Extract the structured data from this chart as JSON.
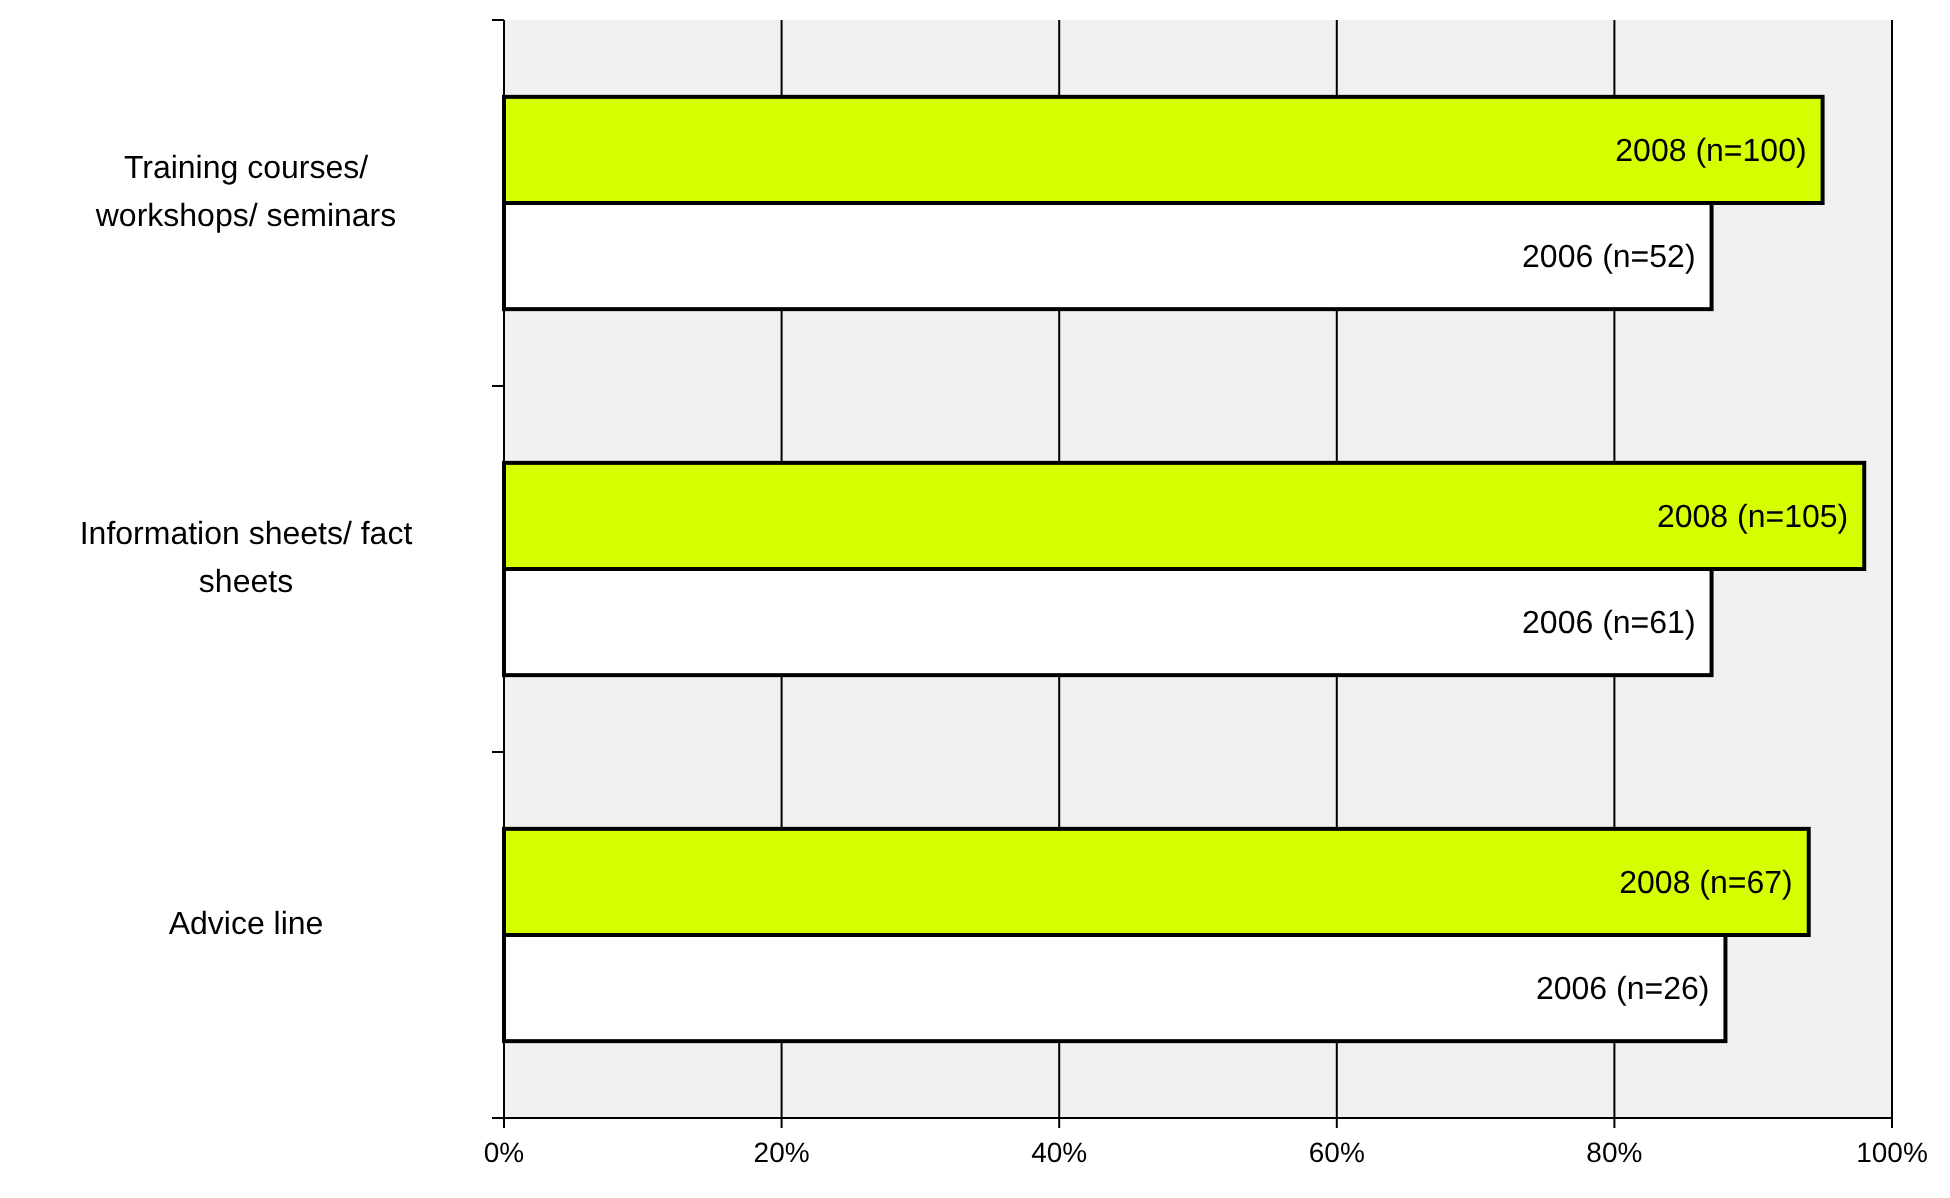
{
  "chart_data": {
    "type": "bar",
    "orientation": "horizontal",
    "categories": [
      "Training courses/ workshops/ seminars",
      "Information sheets/ fact sheets",
      "Advice line"
    ],
    "series": [
      {
        "color": "#d4ff00",
        "values": [
          95,
          98,
          94
        ]
      },
      {
        "color": "#ffffff",
        "values": [
          87,
          87,
          88
        ]
      }
    ],
    "annotations": [
      {
        "text": "2008 (n=100)",
        "x": 95,
        "y": "Training courses/ workshops/ seminars"
      },
      {
        "text": "2006 (n=52)",
        "x": 87,
        "y": "Training courses/ workshops/ seminars"
      },
      {
        "text": "2008 (n=105)",
        "x": 98,
        "y": "Information sheets/ fact sheets"
      },
      {
        "text": "2006 (n=61)",
        "x": 87,
        "y": "Information sheets/ fact sheets"
      },
      {
        "text": "2008 (n=67)",
        "x": 94,
        "y": "Advice line"
      },
      {
        "text": "2006 (n=26)",
        "x": 88,
        "y": "Advice line"
      }
    ],
    "xlim": [
      0,
      100
    ],
    "xticks": [
      {
        "value": 0,
        "label": "0%"
      },
      {
        "value": 20,
        "label": "20%"
      },
      {
        "value": 40,
        "label": "40%"
      },
      {
        "value": 60,
        "label": "60%"
      },
      {
        "value": 80,
        "label": "80%"
      },
      {
        "value": 100,
        "label": "100%"
      }
    ],
    "grid": "x"
  }
}
